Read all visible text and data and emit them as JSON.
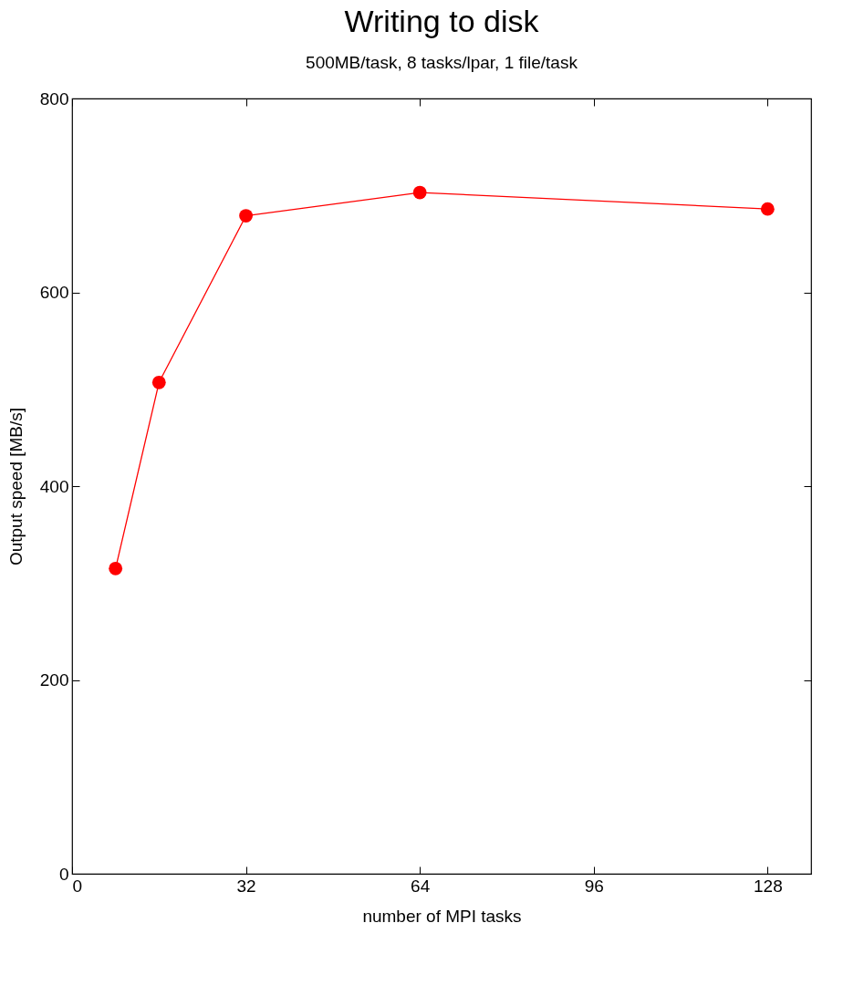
{
  "chart_data": {
    "type": "line",
    "title": "Writing to disk",
    "subtitle": "500MB/task, 8 tasks/lpar, 1 file/task",
    "xlabel": "number of MPI tasks",
    "ylabel": "Output speed [MB/s]",
    "x": [
      8,
      16,
      32,
      64,
      128
    ],
    "series": [
      {
        "color": "#ff0000",
        "values": [
          315,
          507,
          679,
          703,
          686
        ]
      }
    ],
    "xlim": [
      0,
      136
    ],
    "xticks": [
      0,
      32,
      64,
      96,
      128
    ],
    "ylim": [
      0,
      800
    ],
    "yticks": [
      0,
      200,
      400,
      600,
      800
    ],
    "grid": false,
    "marker": "circle",
    "line_style": "solid"
  }
}
